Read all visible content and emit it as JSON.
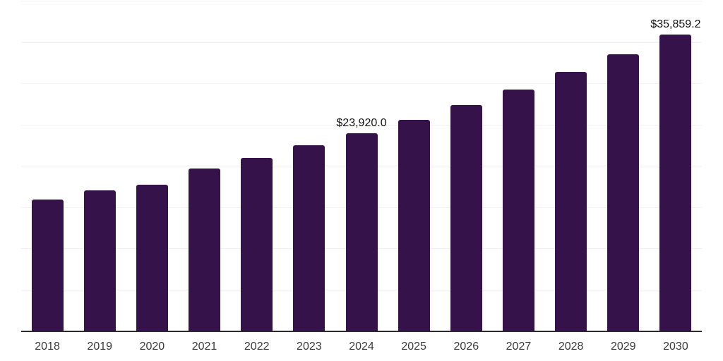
{
  "chart_data": {
    "type": "bar",
    "title": "",
    "xlabel": "",
    "ylabel": "",
    "categories": [
      "2018",
      "2019",
      "2020",
      "2021",
      "2022",
      "2023",
      "2024",
      "2025",
      "2026",
      "2027",
      "2028",
      "2029",
      "2030"
    ],
    "values": [
      15900,
      17040,
      17660,
      19660,
      20940,
      22440,
      23920.0,
      25540,
      27330,
      29260,
      31340,
      33500,
      35859.2
    ],
    "data_labels": {
      "2024": "$23,920.0",
      "2030": "$35,859.2"
    },
    "ylim": [
      0,
      40000
    ],
    "gridline_interval": 5000,
    "grid": "horizontal",
    "legend": "none",
    "colors": {
      "bar_fill": "#35124A",
      "axis_line": "#2B2B2B",
      "gridline": "#F0F0F0",
      "data_label_text": "#111111",
      "tick_label_text": "#3A3A3A",
      "background": "#FFFFFF"
    }
  }
}
